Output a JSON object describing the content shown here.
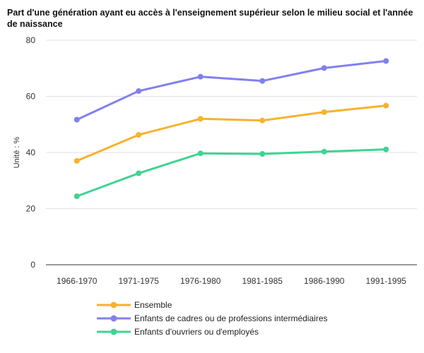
{
  "chart_data": {
    "type": "line",
    "title": "Part d'une génération ayant eu accès à l'enseignement supérieur selon le milieu social et l'année de naissance",
    "xlabel": "",
    "ylabel": "Unité : %",
    "categories": [
      "1966-1970",
      "1971-1975",
      "1976-1980",
      "1981-1985",
      "1986-1990",
      "1991-1995"
    ],
    "ylim": [
      0,
      80
    ],
    "yticks": [
      0,
      20,
      40,
      60,
      80
    ],
    "grid": true,
    "legend_position": "bottom-left",
    "series": [
      {
        "name": "Ensemble",
        "color": "#F7B22E",
        "values": [
          37,
          46.3,
          52,
          51.4,
          54.4,
          56.7
        ]
      },
      {
        "name": "Enfants de cadres ou de professions intermédiaires",
        "color": "#8181EE",
        "values": [
          51.7,
          61.9,
          67,
          65.5,
          70.1,
          72.6
        ]
      },
      {
        "name": "Enfants d'ouvriers ou d'employés",
        "color": "#3FD493",
        "values": [
          24.4,
          32.6,
          39.7,
          39.5,
          40.3,
          41.1
        ]
      }
    ]
  }
}
